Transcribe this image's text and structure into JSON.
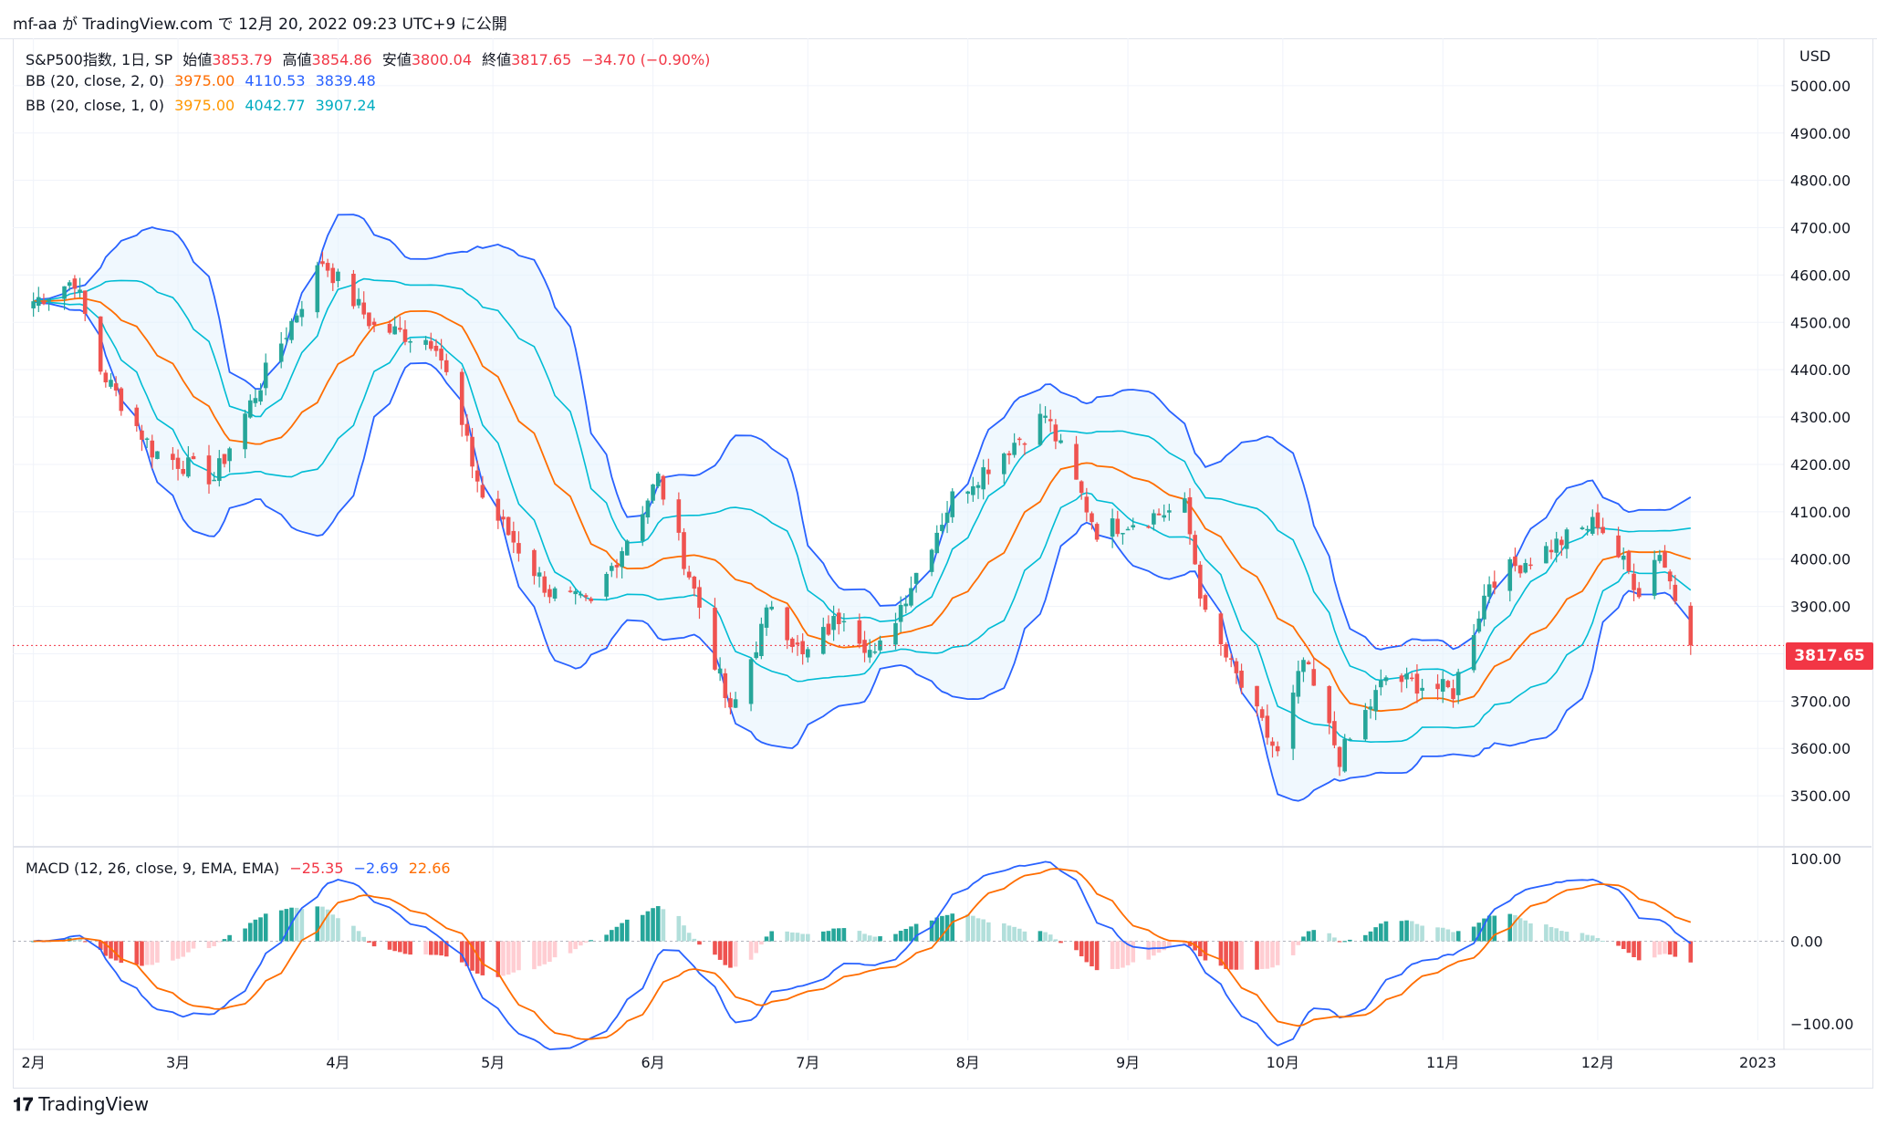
{
  "header": {
    "publisher_line": "mf-aa が TradingView.com で 12月 20, 2022 09:23 UTC+9 に公開"
  },
  "price_scale": {
    "currency": "USD",
    "last_price_tag": "3817.65"
  },
  "legend": {
    "symbol": "S&P500指数, 1日, SP",
    "o_label": "始値",
    "o": "3853.79",
    "h_label": "高値",
    "h": "3854.86",
    "l_label": "安値",
    "l": "3800.04",
    "c_label": "終値",
    "c": "3817.65",
    "chg": "−34.70 (−0.90%)",
    "bb1_name": "BB (20, close, 2, 0)",
    "bb1_mid": "3975.00",
    "bb1_up": "4110.53",
    "bb1_lo": "3839.48",
    "bb2_name": "BB (20, close, 1, 0)",
    "bb2_mid": "3975.00",
    "bb2_up": "4042.77",
    "bb2_lo": "3907.24",
    "macd_name": "MACD (12, 26, close, 9, EMA, EMA)",
    "macd_hist": "−25.35",
    "macd_line": "−2.69",
    "macd_signal": "22.66"
  },
  "footer": {
    "brand": "TradingView"
  },
  "colors": {
    "up": "#26a69a",
    "down": "#ef5350",
    "up_light": "#b2dfdb",
    "down_light": "#ffcdd2",
    "bb_outer": "#2962ff",
    "bb_inner": "#00bcd4",
    "bb_mid": "#ff6d00",
    "macd": "#2962ff",
    "signal": "#ff6d00",
    "band_fill": "#e3f2fd"
  },
  "chart_data": [
    {
      "type": "candlestick",
      "title": "S&P500指数, 1日, SP",
      "x_tick_labels": [
        "2月",
        "3月",
        "4月",
        "5月",
        "6月",
        "7月",
        "8月",
        "9月",
        "10月",
        "11月",
        "12月",
        "2023"
      ],
      "y_tick_labels": [
        "3500.00",
        "3600.00",
        "3700.00",
        "3800.00",
        "3900.00",
        "4000.00",
        "4100.00",
        "4200.00",
        "4300.00",
        "4400.00",
        "4500.00",
        "4600.00",
        "4700.00",
        "4800.00",
        "4900.00",
        "5000.00"
      ],
      "ylim": [
        3400,
        5100
      ],
      "last_price": 3817.65,
      "close_anchors": [
        [
          "2022-02-01",
          4545
        ],
        [
          "2022-02-09",
          4590
        ],
        [
          "2022-02-14",
          4400
        ],
        [
          "2022-02-24",
          4230
        ],
        [
          "2022-03-08",
          4170
        ],
        [
          "2022-03-16",
          4350
        ],
        [
          "2022-03-29",
          4630
        ],
        [
          "2022-04-08",
          4490
        ],
        [
          "2022-04-20",
          4460
        ],
        [
          "2022-04-29",
          4130
        ],
        [
          "2022-05-12",
          3930
        ],
        [
          "2022-05-20",
          3900
        ],
        [
          "2022-06-02",
          4170
        ],
        [
          "2022-06-10",
          3900
        ],
        [
          "2022-06-16",
          3670
        ],
        [
          "2022-06-24",
          3910
        ],
        [
          "2022-06-30",
          3790
        ],
        [
          "2022-07-08",
          3890
        ],
        [
          "2022-07-14",
          3790
        ],
        [
          "2022-07-29",
          4130
        ],
        [
          "2022-08-16",
          4305
        ],
        [
          "2022-08-26",
          4060
        ],
        [
          "2022-09-12",
          4110
        ],
        [
          "2022-09-16",
          3875
        ],
        [
          "2022-09-30",
          3585
        ],
        [
          "2022-10-05",
          3785
        ],
        [
          "2022-10-12",
          3580
        ],
        [
          "2022-10-21",
          3750
        ],
        [
          "2022-11-03",
          3720
        ],
        [
          "2022-11-10",
          3955
        ],
        [
          "2022-12-01",
          4080
        ],
        [
          "2022-12-09",
          3935
        ],
        [
          "2022-12-13",
          4020
        ],
        [
          "2022-12-19",
          3817.65
        ]
      ],
      "bb_2sd_last": {
        "middle": 3975.0,
        "upper": 4110.53,
        "lower": 3839.48
      },
      "bb_1sd_last": {
        "middle": 3975.0,
        "upper": 4042.77,
        "lower": 3907.24
      }
    },
    {
      "type": "line",
      "title": "MACD (12, 26, close, 9, EMA, EMA)",
      "y_tick_labels": [
        "100.00",
        "0.00",
        "−100.00"
      ],
      "ylim": [
        -120,
        110
      ],
      "series": [
        {
          "name": "Histogram",
          "last": -25.35
        },
        {
          "name": "MACD",
          "last": -2.69
        },
        {
          "name": "Signal",
          "last": 22.66
        }
      ]
    }
  ]
}
